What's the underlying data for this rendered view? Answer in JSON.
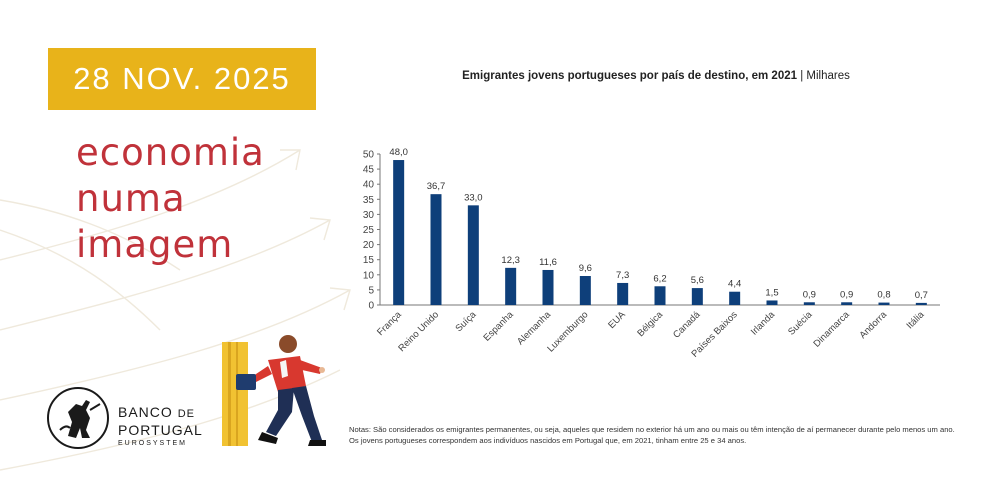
{
  "date": "28 NOV. 2025",
  "headline": [
    "economia",
    "numa",
    "imagem"
  ],
  "logo": {
    "name_main": "BANCO",
    "name_de": "DE",
    "name_line2": "PORTUGAL",
    "sub": "EUROSYSTEM"
  },
  "colors": {
    "gold": "#e8b31a",
    "red": "#c0323a",
    "bar": "#0e3f7a"
  },
  "chart_data": {
    "type": "bar",
    "title": "Emigrantes jovens portugueses por país de destino, em 2021",
    "subtitle": "Milhares",
    "categories": [
      "França",
      "Reino Unido",
      "Suíça",
      "Espanha",
      "Alemanha",
      "Luxemburgo",
      "EUA",
      "Bélgica",
      "Canadá",
      "Países Baixos",
      "Irlanda",
      "Suécia",
      "Dinamarca",
      "Andorra",
      "Itália"
    ],
    "values": [
      48.0,
      36.7,
      33.0,
      12.3,
      11.6,
      9.6,
      7.3,
      6.2,
      5.6,
      4.4,
      1.5,
      0.9,
      0.9,
      0.8,
      0.7
    ],
    "value_labels": [
      "48,0",
      "36,7",
      "33,0",
      "12,3",
      "11,6",
      "9,6",
      "7,3",
      "6,2",
      "5,6",
      "4,4",
      "1,5",
      "0,9",
      "0,9",
      "0,8",
      "0,7"
    ],
    "yticks": [
      0,
      5,
      10,
      15,
      20,
      25,
      30,
      35,
      40,
      45,
      50
    ],
    "ylim": [
      0,
      50
    ],
    "grid": false,
    "legend": "none"
  },
  "notes": "Notas: São considerados os emigrantes permanentes, ou seja, aqueles que residem no exterior há um ano ou mais ou têm intenção de aí permanecer durante pelo menos um ano. Os jovens portugueses correspondem aos indivíduos nascidos em Portugal que, em 2021, tinham entre 25 e 34 anos."
}
